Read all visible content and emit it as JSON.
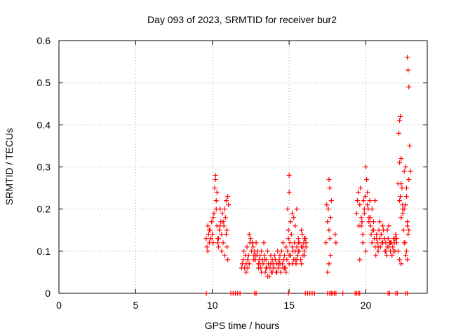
{
  "chart_data": {
    "type": "scatter",
    "title": "Day 093 of 2023, SRMTID for receiver bur2",
    "xlabel": "GPS time / hours",
    "ylabel": "SRMTID / TECUs",
    "xlim": [
      0,
      24
    ],
    "ylim": [
      0,
      0.6
    ],
    "xticks": [
      0,
      5,
      10,
      15,
      20
    ],
    "xtick_labels": [
      "0",
      "5",
      "10",
      "15",
      "20"
    ],
    "yticks": [
      0,
      0.1,
      0.2,
      0.3,
      0.4,
      0.5,
      0.6
    ],
    "ytick_labels": [
      "0",
      "0.1",
      "0.2",
      "0.3",
      "0.4",
      "0.5",
      "0.6"
    ],
    "grid": true,
    "marker": "+",
    "color": "#ff0000",
    "series": [
      {
        "name": "SRMTID",
        "x": [
          9.6,
          9.65,
          9.7,
          9.75,
          9.8,
          9.85,
          9.9,
          9.95,
          10.0,
          10.05,
          10.1,
          10.15,
          10.2,
          10.25,
          10.3,
          10.35,
          10.4,
          10.45,
          10.5,
          10.55,
          10.6,
          10.65,
          10.7,
          10.75,
          10.8,
          10.85,
          10.9,
          10.95,
          11.0,
          11.05,
          10.2,
          10.25,
          10.3,
          10.4,
          10.6,
          10.7,
          10.9,
          11.0,
          9.7,
          9.8,
          9.9,
          10.05,
          10.35,
          10.5,
          10.8,
          10.95,
          11.9,
          11.95,
          12.0,
          12.05,
          12.1,
          12.15,
          12.2,
          12.25,
          12.3,
          12.35,
          12.4,
          12.45,
          12.5,
          12.55,
          12.6,
          12.65,
          12.7,
          12.75,
          12.8,
          12.85,
          12.9,
          12.95,
          13.0,
          13.05,
          13.1,
          13.15,
          13.2,
          13.25,
          13.3,
          13.35,
          13.4,
          13.45,
          13.5,
          13.55,
          13.6,
          13.65,
          13.7,
          13.75,
          13.8,
          13.85,
          13.9,
          13.95,
          14.0,
          14.05,
          14.1,
          14.15,
          14.2,
          14.25,
          14.3,
          14.35,
          14.4,
          14.45,
          14.5,
          14.55,
          14.6,
          14.65,
          14.7,
          14.75,
          14.8,
          14.85,
          14.9,
          14.95,
          15.0,
          15.05,
          15.1,
          15.15,
          15.2,
          15.25,
          15.3,
          15.35,
          15.4,
          15.45,
          15.5,
          15.55,
          15.6,
          15.65,
          15.7,
          15.75,
          15.8,
          15.85,
          15.9,
          15.95,
          16.0,
          16.05,
          16.1,
          12.2,
          12.4,
          12.6,
          12.8,
          13.0,
          13.2,
          13.4,
          13.6,
          13.8,
          14.0,
          14.2,
          14.4,
          14.6,
          14.8,
          15.0,
          15.2,
          15.4,
          15.6,
          15.8,
          16.0,
          12.3,
          12.7,
          13.1,
          13.5,
          13.9,
          14.3,
          14.7,
          15.1,
          15.5,
          15.9,
          14.9,
          15.0,
          15.0,
          14.95,
          15.1,
          15.2,
          15.3,
          15.4,
          15.5,
          15.6,
          15.8,
          16.0,
          16.1,
          17.4,
          17.45,
          17.5,
          17.55,
          17.6,
          17.65,
          17.7,
          17.75,
          17.6,
          17.65,
          17.7,
          17.5,
          17.6,
          18.0,
          18.05,
          19.4,
          19.45,
          19.5,
          19.55,
          19.6,
          19.65,
          19.7,
          19.75,
          19.8,
          19.85,
          19.9,
          19.95,
          20.0,
          20.05,
          20.1,
          20.15,
          20.2,
          20.25,
          20.3,
          20.35,
          20.4,
          20.45,
          20.5,
          20.55,
          20.6,
          20.65,
          20.7,
          20.75,
          20.8,
          20.85,
          20.9,
          20.95,
          21.0,
          21.05,
          21.1,
          21.15,
          21.2,
          21.25,
          21.3,
          21.35,
          21.4,
          21.45,
          21.5,
          21.55,
          21.6,
          21.65,
          21.7,
          21.75,
          21.8,
          21.85,
          21.9,
          21.95,
          22.0,
          19.6,
          19.8,
          20.0,
          20.2,
          20.4,
          20.6,
          20.8,
          21.0,
          21.2,
          21.4,
          21.6,
          21.8,
          22.0,
          19.7,
          19.9,
          20.1,
          20.3,
          20.5,
          20.7,
          20.9,
          21.1,
          21.3,
          21.5,
          21.7,
          21.9,
          22.0,
          22.1,
          22.15,
          22.2,
          22.25,
          22.3,
          22.35,
          22.4,
          22.45,
          22.5,
          22.55,
          22.6,
          22.65,
          22.7,
          22.75,
          22.8,
          22.85,
          22.9,
          22.1,
          22.2,
          22.3,
          22.4,
          22.5,
          22.6,
          22.7,
          22.8,
          22.2,
          22.3,
          22.5,
          22.65,
          22.7,
          22.75,
          22.6,
          22.65,
          22.8,
          22.4,
          22.2,
          22.25,
          22.7,
          22.3
        ],
        "y": [
          0.13,
          0.11,
          0.16,
          0.14,
          0.12,
          0.15,
          0.13,
          0.17,
          0.14,
          0.12,
          0.19,
          0.25,
          0.28,
          0.22,
          0.16,
          0.13,
          0.11,
          0.15,
          0.2,
          0.17,
          0.14,
          0.19,
          0.12,
          0.16,
          0.2,
          0.18,
          0.22,
          0.15,
          0.23,
          0.21,
          0.27,
          0.2,
          0.24,
          0.13,
          0.1,
          0.17,
          0.14,
          0.08,
          0.1,
          0.15,
          0.13,
          0.18,
          0.12,
          0.16,
          0.09,
          0.11,
          0.06,
          0.07,
          0.08,
          0.1,
          0.06,
          0.09,
          0.07,
          0.11,
          0.08,
          0.09,
          0.14,
          0.12,
          0.13,
          0.1,
          0.12,
          0.11,
          0.09,
          0.1,
          0.08,
          0.12,
          0.09,
          0.1,
          0.07,
          0.08,
          0.09,
          0.06,
          0.1,
          0.08,
          0.07,
          0.12,
          0.09,
          0.05,
          0.08,
          0.06,
          0.1,
          0.07,
          0.04,
          0.06,
          0.09,
          0.05,
          0.08,
          0.07,
          0.06,
          0.09,
          0.08,
          0.05,
          0.07,
          0.1,
          0.06,
          0.08,
          0.09,
          0.05,
          0.1,
          0.07,
          0.12,
          0.08,
          0.09,
          0.06,
          0.11,
          0.08,
          0.1,
          0.13,
          0.07,
          0.12,
          0.09,
          0.14,
          0.11,
          0.1,
          0.08,
          0.12,
          0.1,
          0.07,
          0.11,
          0.09,
          0.13,
          0.1,
          0.12,
          0.08,
          0.11,
          0.14,
          0.09,
          0.12,
          0.1,
          0.13,
          0.11,
          0.05,
          0.07,
          0.12,
          0.09,
          0.06,
          0.05,
          0.08,
          0.04,
          0.07,
          0.06,
          0.05,
          0.07,
          0.06,
          0.05,
          0.09,
          0.07,
          0.08,
          0.1,
          0.07,
          0.09,
          0.06,
          0.08,
          0.07,
          0.06,
          0.05,
          0.07,
          0.06,
          0.09,
          0.08,
          0.11,
          0.2,
          0.28,
          0.24,
          0.15,
          0.17,
          0.19,
          0.18,
          0.16,
          0.2,
          0.12,
          0.15,
          0.13,
          0.12,
          0.12,
          0.21,
          0.17,
          0.2,
          0.15,
          0.13,
          0.18,
          0.22,
          0.27,
          0.25,
          0.09,
          0.05,
          0.07,
          0.14,
          0.12,
          0.19,
          0.22,
          0.24,
          0.16,
          0.21,
          0.25,
          0.18,
          0.17,
          0.14,
          0.22,
          0.2,
          0.23,
          0.3,
          0.27,
          0.24,
          0.2,
          0.18,
          0.22,
          0.16,
          0.14,
          0.12,
          0.15,
          0.17,
          0.13,
          0.11,
          0.09,
          0.14,
          0.12,
          0.1,
          0.15,
          0.13,
          0.11,
          0.14,
          0.12,
          0.16,
          0.15,
          0.13,
          0.1,
          0.12,
          0.09,
          0.11,
          0.13,
          0.16,
          0.12,
          0.1,
          0.12,
          0.09,
          0.11,
          0.13,
          0.12,
          0.1,
          0.14,
          0.13,
          0.08,
          0.12,
          0.1,
          0.17,
          0.2,
          0.22,
          0.11,
          0.14,
          0.13,
          0.15,
          0.12,
          0.1,
          0.12,
          0.16,
          0.19,
          0.21,
          0.18,
          0.15,
          0.13,
          0.17,
          0.12,
          0.1,
          0.11,
          0.09,
          0.13,
          0.13,
          0.26,
          0.38,
          0.41,
          0.42,
          0.32,
          0.25,
          0.2,
          0.15,
          0.29,
          0.12,
          0.21,
          0.1,
          0.56,
          0.53,
          0.49,
          0.35,
          0.29,
          0.1,
          0.08,
          0.07,
          0.19,
          0.2,
          0.09,
          0.08,
          0.27,
          0.22,
          0.18,
          0.12,
          0.23,
          0.17,
          0.14,
          0.3,
          0.25,
          0.15,
          0.21,
          0.31,
          0.23,
          0.16,
          0.26
        ],
        "nodata_x": [
          9.6,
          11.2,
          11.35,
          11.5,
          11.65,
          11.8,
          12.75,
          12.85,
          14.95,
          16.05,
          16.2,
          16.35,
          16.5,
          16.65,
          17.5,
          17.65,
          17.75,
          17.85,
          17.95,
          18.05,
          18.5,
          19.3,
          19.4,
          19.5,
          19.6,
          21.45,
          21.55,
          21.95,
          22.05,
          22.6,
          22.7
        ]
      }
    ]
  }
}
